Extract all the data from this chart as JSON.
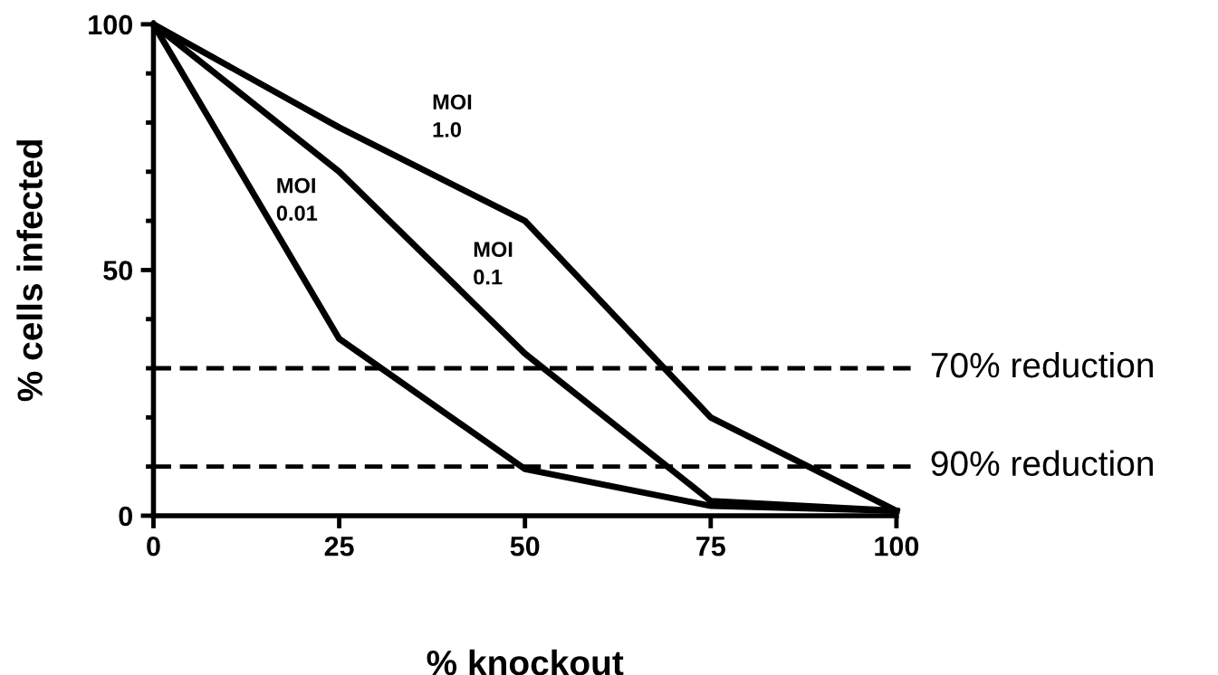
{
  "chart_data": {
    "type": "line",
    "xlabel": "% knockout",
    "ylabel": "% cells infected",
    "x": [
      0,
      25,
      50,
      75,
      100
    ],
    "series": [
      {
        "name": "MOI\n1.0",
        "color": "#000000",
        "values": [
          100,
          79,
          60,
          20,
          1
        ]
      },
      {
        "name": "MOI\n0.1",
        "color": "#000000",
        "values": [
          100,
          70,
          33,
          3,
          1
        ]
      },
      {
        "name": "MOI\n0.01",
        "color": "#000000",
        "values": [
          100,
          36,
          9.5,
          2,
          1
        ]
      }
    ],
    "xlim": [
      0,
      100
    ],
    "ylim": [
      0,
      100
    ],
    "xticks": [
      0,
      25,
      50,
      75,
      100
    ],
    "yticks": [
      0,
      {
        "value": 10,
        "label": null
      },
      {
        "value": 20,
        "label": null
      },
      {
        "value": 30,
        "label": null
      },
      {
        "value": 40,
        "label": null
      },
      50,
      {
        "value": 60,
        "label": null
      },
      {
        "value": 70,
        "label": null
      },
      {
        "value": 80,
        "label": null
      },
      {
        "value": 90,
        "label": null
      },
      100
    ],
    "ref_lines": [
      {
        "axis": "y",
        "value": 30,
        "label": "70% reduction",
        "color": "#000000",
        "line_style": "dashed"
      },
      {
        "axis": "y",
        "value": 10,
        "label": "90% reduction",
        "color": "#000000",
        "line_style": "dashed"
      }
    ],
    "grid": false,
    "legend": false,
    "marker": "none",
    "line_style": "solid"
  }
}
